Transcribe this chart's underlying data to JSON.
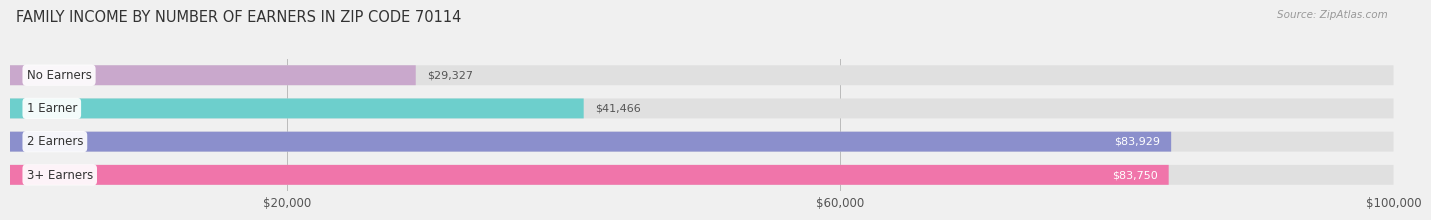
{
  "title": "FAMILY INCOME BY NUMBER OF EARNERS IN ZIP CODE 70114",
  "source": "Source: ZipAtlas.com",
  "categories": [
    "No Earners",
    "1 Earner",
    "2 Earners",
    "3+ Earners"
  ],
  "values": [
    29327,
    41466,
    83929,
    83750
  ],
  "bar_colors": [
    "#c9a8cc",
    "#6dcfcc",
    "#8b8fcc",
    "#f075aa"
  ],
  "label_colors": [
    "#555555",
    "#555555",
    "#ffffff",
    "#ffffff"
  ],
  "xlim": [
    0,
    100000
  ],
  "xticks": [
    20000,
    60000,
    100000
  ],
  "xtick_labels": [
    "$20,000",
    "$60,000",
    "$100,000"
  ],
  "value_labels": [
    "$29,327",
    "$41,466",
    "$83,929",
    "$83,750"
  ],
  "background_color": "#f0f0f0",
  "bar_background": "#e0e0e0",
  "title_fontsize": 10.5,
  "source_fontsize": 7.5
}
